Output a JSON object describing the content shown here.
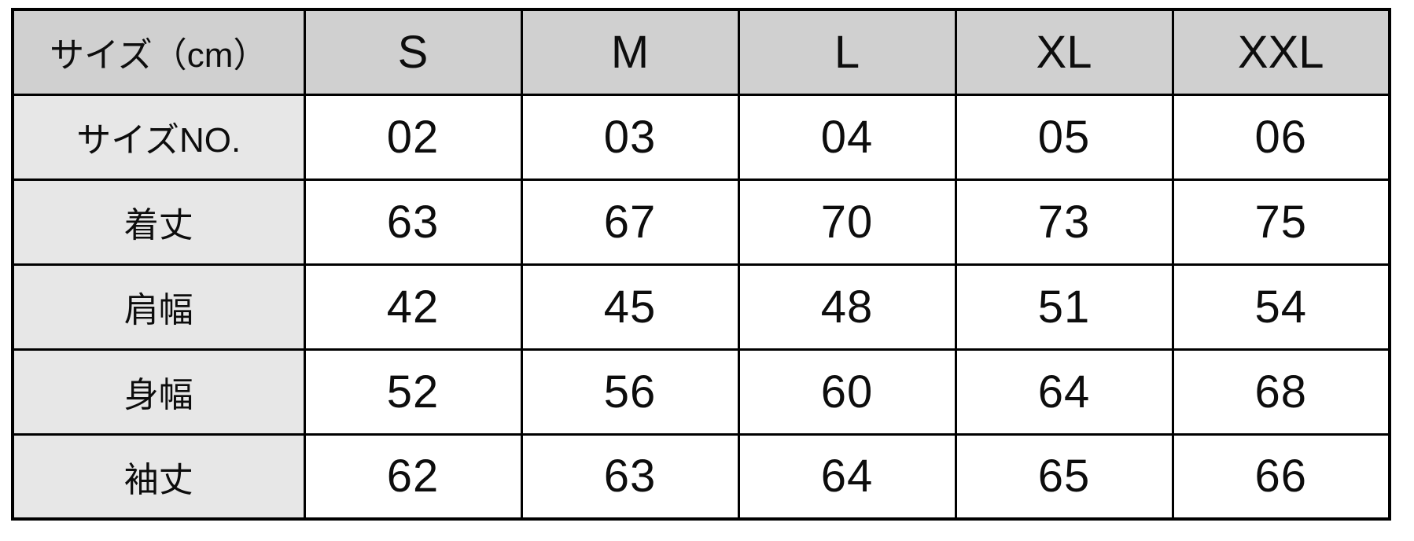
{
  "colors": {
    "header_bg": "#d0d0d0",
    "row_label_bg": "#e7e7e7",
    "cell_bg": "#ffffff",
    "border": "#000000",
    "text": "#0d0d0d",
    "page_bg": "#ffffff"
  },
  "chart_data": {
    "type": "table",
    "title": "サイズ（cm）",
    "unit": "cm",
    "columns": [
      "サイズ（cm）",
      "S",
      "M",
      "L",
      "XL",
      "XXL"
    ],
    "rows": [
      {
        "label": "サイズNO.",
        "values": [
          "02",
          "03",
          "04",
          "05",
          "06"
        ]
      },
      {
        "label": "着丈",
        "values": [
          "63",
          "67",
          "70",
          "73",
          "75"
        ]
      },
      {
        "label": "肩幅",
        "values": [
          "42",
          "45",
          "48",
          "51",
          "54"
        ]
      },
      {
        "label": "身幅",
        "values": [
          "52",
          "56",
          "60",
          "64",
          "68"
        ]
      },
      {
        "label": "袖丈",
        "values": [
          "62",
          "63",
          "64",
          "65",
          "66"
        ]
      }
    ],
    "layout": {
      "header_row_shaded": true,
      "label_column_shaded": true,
      "grid": true
    }
  }
}
